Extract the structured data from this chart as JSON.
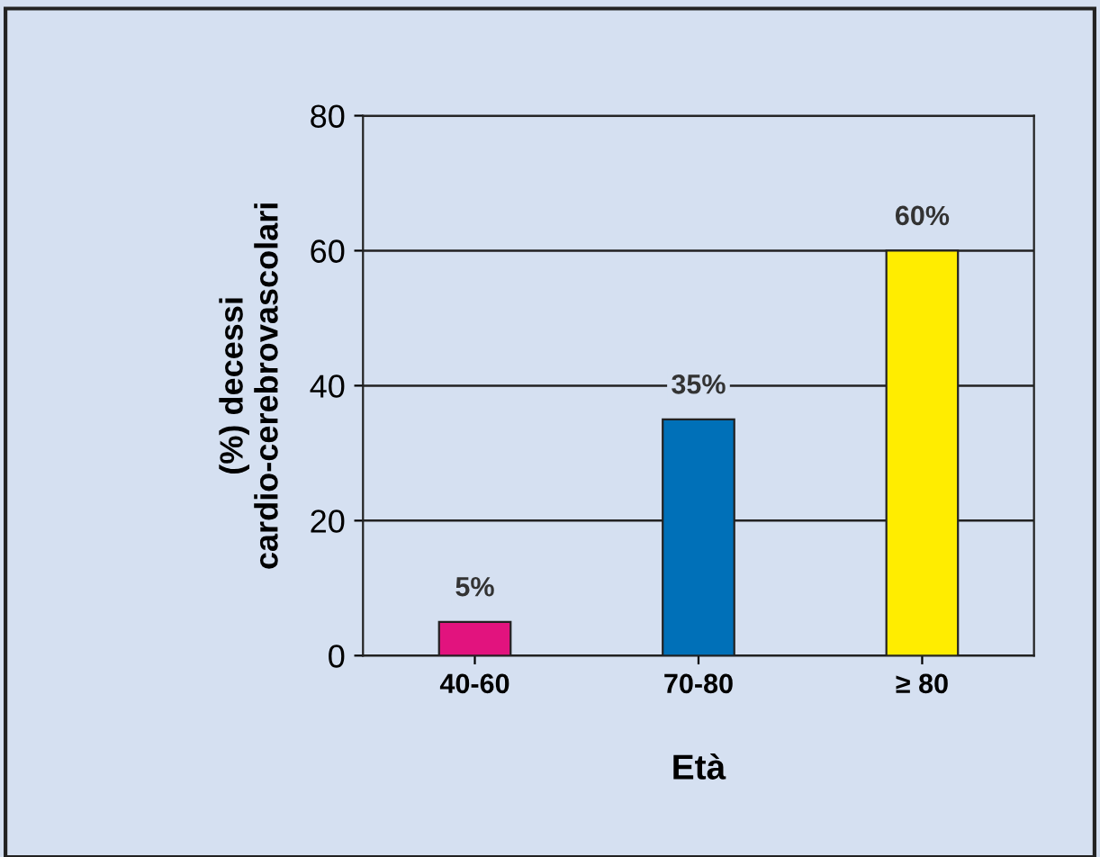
{
  "chart_data": {
    "type": "bar",
    "xlabel": "Età",
    "ylabel": "(%) decessi\ncardio-cerebrovascolari",
    "categories": [
      "40-60",
      "70-80",
      "≥ 80"
    ],
    "values": [
      5,
      35,
      60
    ],
    "colors": [
      "#e2137e",
      "#0070b8",
      "#ffed00"
    ],
    "value_labels": [
      "5%",
      "35%",
      "60%"
    ],
    "ylim": [
      0,
      80
    ],
    "yticks": [
      0,
      20,
      40,
      60,
      80
    ],
    "grid": "y"
  }
}
